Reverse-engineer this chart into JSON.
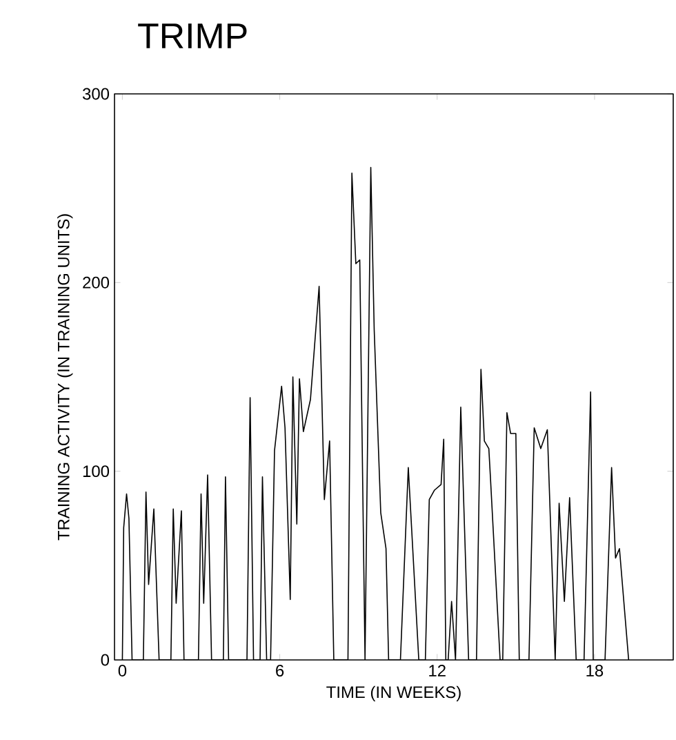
{
  "chart_data": {
    "type": "line",
    "title": "TRIMP",
    "xlabel": "TIME (IN WEEKS)",
    "ylabel": "TRAINING ACTIVITY (IN TRAINING UNITS)",
    "color": "#000000",
    "xlim": [
      -0.3,
      21
    ],
    "ylim": [
      0,
      300
    ],
    "xticks": [
      0,
      6,
      12,
      18
    ],
    "yticks": [
      0,
      100,
      200,
      300
    ],
    "x": [
      0,
      0.05,
      0.16,
      0.25,
      0.37,
      0.8,
      0.9,
      1.0,
      1.2,
      1.4,
      1.85,
      1.94,
      2.05,
      2.25,
      2.35,
      2.9,
      3.0,
      3.1,
      3.25,
      3.4,
      3.85,
      3.93,
      4.05,
      4.75,
      4.87,
      5.0,
      5.25,
      5.34,
      5.5,
      5.65,
      5.8,
      6.07,
      6.2,
      6.4,
      6.5,
      6.65,
      6.75,
      6.9,
      7.17,
      7.5,
      7.7,
      7.9,
      8.06,
      8.6,
      8.75,
      8.9,
      9.05,
      9.25,
      9.47,
      9.6,
      9.85,
      10.05,
      10.15,
      10.6,
      10.9,
      11.3,
      11.55,
      11.7,
      11.9,
      12.15,
      12.25,
      12.33,
      12.42,
      12.55,
      12.7,
      12.9,
      13.2,
      13.5,
      13.67,
      13.8,
      13.97,
      14.03,
      14.4,
      14.5,
      14.66,
      14.8,
      15.0,
      15.13,
      15.5,
      15.7,
      15.95,
      16.2,
      16.5,
      16.65,
      16.85,
      17.05,
      17.3,
      17.6,
      17.85,
      17.95,
      18.4,
      18.65,
      18.8,
      18.95,
      19.3
    ],
    "values": [
      0,
      70,
      88,
      75,
      0,
      0,
      89,
      40,
      80,
      0,
      0,
      80,
      30,
      79,
      0,
      0,
      88,
      30,
      98,
      0,
      0,
      97,
      0,
      0,
      139,
      0,
      0,
      97,
      0,
      0,
      111,
      145,
      123,
      32,
      150,
      72,
      149,
      121,
      138,
      198,
      85,
      116,
      0,
      0,
      258,
      210,
      212,
      0,
      261,
      175,
      78,
      59,
      0,
      0,
      102,
      0,
      0,
      85,
      90,
      93,
      117,
      0,
      0,
      31,
      0,
      134,
      0,
      0,
      154,
      116,
      112,
      97,
      0,
      0,
      131,
      120,
      120,
      0,
      0,
      123,
      112,
      122,
      0,
      83,
      31,
      86,
      0,
      0,
      142,
      0,
      0,
      102,
      54,
      59,
      0
    ]
  }
}
